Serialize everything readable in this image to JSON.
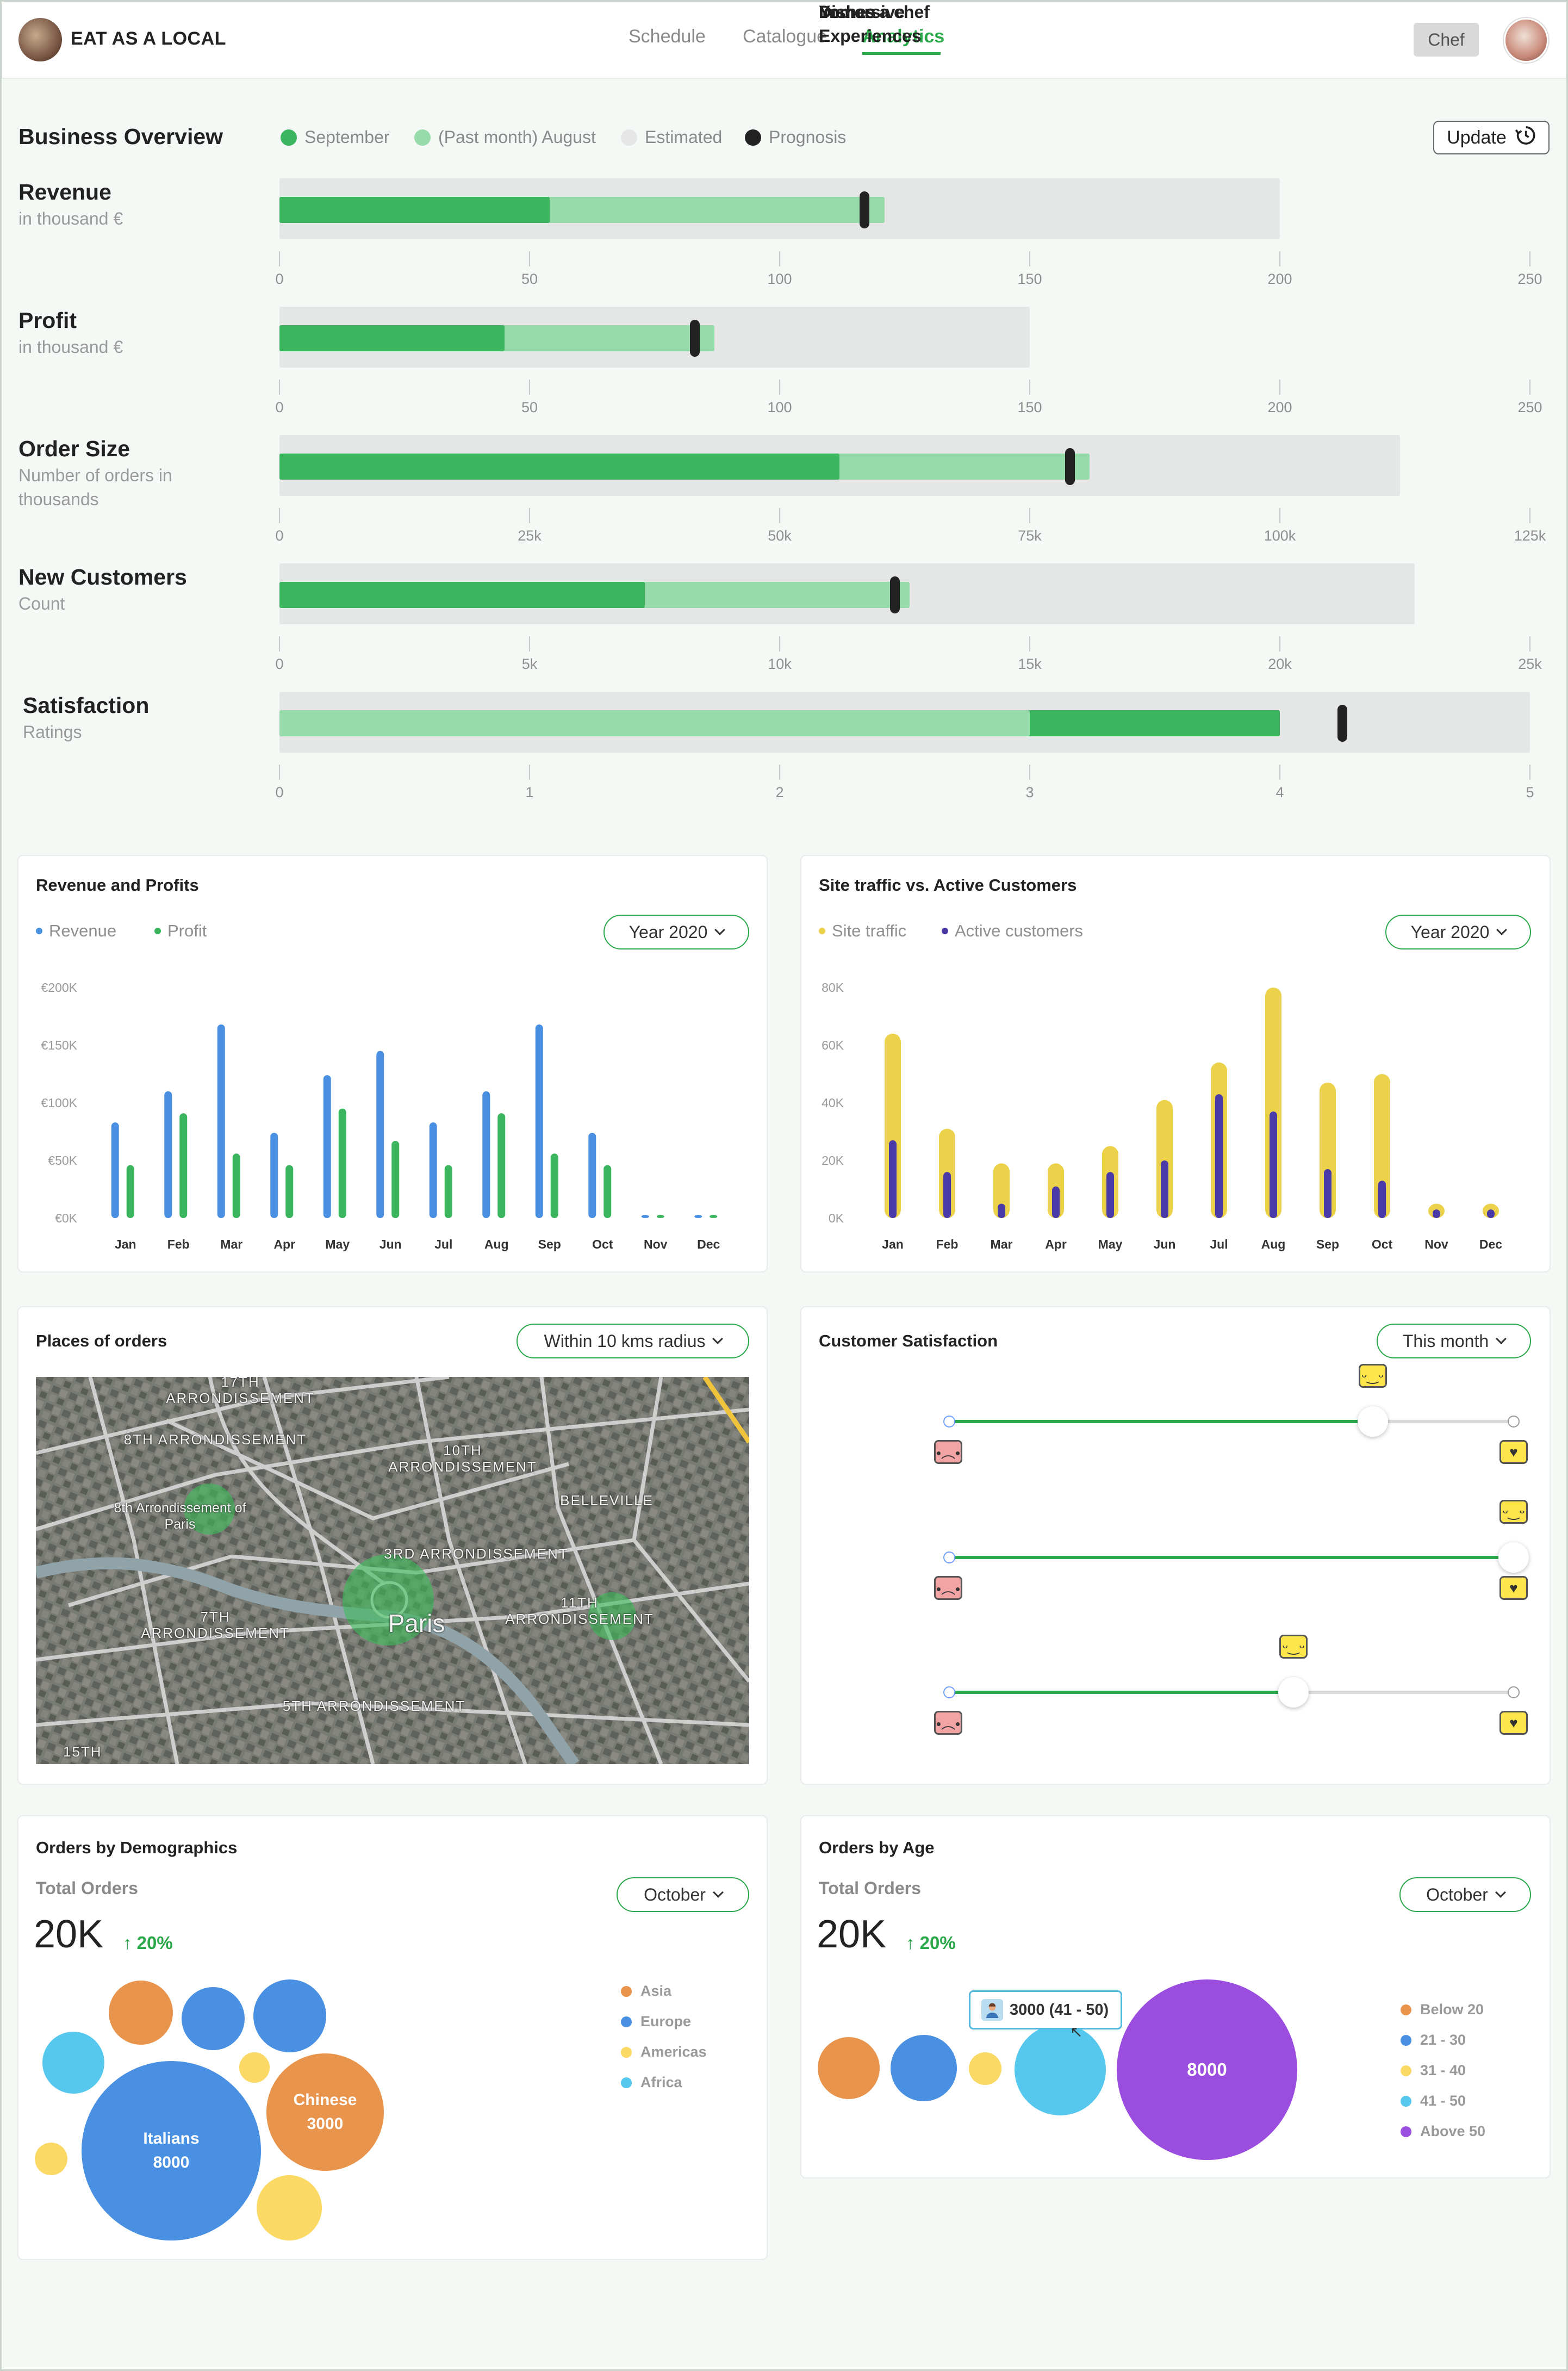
{
  "nav": {
    "brand": "EAT AS A LOCAL",
    "links": [
      "Schedule",
      "Catalogue",
      "Analytics"
    ],
    "active": "Analytics",
    "role_button": "Chef"
  },
  "overview": {
    "title": "Business Overview",
    "legend": [
      {
        "label": "September",
        "color": "#3cb55f"
      },
      {
        "label": "(Past month) August",
        "color": "#98dbab"
      },
      {
        "label": "Estimated",
        "color": "#e6e6e6"
      },
      {
        "label": "Prognosis",
        "color": "#222222"
      }
    ],
    "update_label": "Update",
    "metrics": [
      {
        "name": "Revenue",
        "sub": "in thousand €",
        "ticks": [
          "0",
          "50",
          "100",
          "150",
          "200",
          "250"
        ],
        "max": 250,
        "estimated": 200,
        "september": 54,
        "august": 121,
        "prognosis": 117
      },
      {
        "name": "Profit",
        "sub": "in thousand €",
        "ticks": [
          "0",
          "50",
          "100",
          "150",
          "200",
          "250"
        ],
        "max": 250,
        "estimated": 150,
        "september": 45,
        "august": 87,
        "prognosis": 83
      },
      {
        "name": "Order Size",
        "sub": "Number of orders in thousands",
        "ticks": [
          "0",
          "25k",
          "50k",
          "75k",
          "100k",
          "125k"
        ],
        "max": 125,
        "estimated": 112,
        "september": 56,
        "august": 81,
        "prognosis": 79
      },
      {
        "name": "New Customers",
        "sub": "Count",
        "ticks": [
          "0",
          "5k",
          "10k",
          "15k",
          "20k",
          "25k"
        ],
        "max": 25,
        "estimated": 22.7,
        "september": 7.3,
        "august": 12.6,
        "prognosis": 12.3
      },
      {
        "name": "Satisfaction",
        "sub": "Ratings",
        "ticks": [
          "0",
          "1",
          "2",
          "3",
          "4",
          "5"
        ],
        "max": 5,
        "estimated": 5,
        "september": 4.0,
        "august": 3.0,
        "prognosis": 4.25
      }
    ]
  },
  "rev_profit": {
    "title": "Revenue and Profits",
    "legend": [
      "Revenue",
      "Profit"
    ],
    "filter": "Year 2020"
  },
  "traffic": {
    "title": "Site traffic vs. Active Customers",
    "legend": [
      "Site traffic",
      "Active customers"
    ],
    "filter": "Year 2020"
  },
  "chart_data": [
    {
      "type": "bar",
      "title": "Revenue and Profits",
      "categories": [
        "Jan",
        "Feb",
        "Mar",
        "Apr",
        "May",
        "Jun",
        "Jul",
        "Aug",
        "Sep",
        "Oct",
        "Nov",
        "Dec"
      ],
      "ylim": [
        0,
        200
      ],
      "yticks": [
        "€200K",
        "€150K",
        "€100K",
        "€50K",
        "€0K"
      ],
      "series": [
        {
          "name": "Revenue",
          "color": "#4a90e2",
          "values": [
            83,
            110,
            168,
            74,
            124,
            145,
            83,
            110,
            168,
            74,
            2,
            2
          ]
        },
        {
          "name": "Profit",
          "color": "#3cb55f",
          "values": [
            46,
            91,
            56,
            46,
            95,
            67,
            46,
            91,
            56,
            46,
            2,
            2
          ]
        }
      ]
    },
    {
      "type": "bar",
      "title": "Site traffic vs. Active Customers",
      "categories": [
        "Jan",
        "Feb",
        "Mar",
        "Apr",
        "May",
        "Jun",
        "Jul",
        "Aug",
        "Sep",
        "Oct",
        "Nov",
        "Dec"
      ],
      "ylim": [
        0,
        80
      ],
      "yticks": [
        "80K",
        "60K",
        "40K",
        "20K",
        "0K"
      ],
      "series": [
        {
          "name": "Site traffic",
          "color": "#ecd24a",
          "values": [
            64,
            31,
            19,
            19,
            25,
            41,
            54,
            80,
            47,
            50,
            5,
            5
          ]
        },
        {
          "name": "Active customers",
          "color": "#4a3aa8",
          "values": [
            27,
            16,
            5,
            11,
            16,
            20,
            43,
            37,
            17,
            13,
            3,
            3
          ]
        }
      ]
    }
  ],
  "places": {
    "title": "Places of orders",
    "filter": "Within 10 kms radius",
    "map_labels": [
      {
        "t": "17TH\nARRONDISSEMENT"
      },
      {
        "t": "8TH\nARRONDISSEMENT"
      },
      {
        "t": "10TH\nARRONDISSEMENT"
      },
      {
        "t": "BELLEVILLE"
      },
      {
        "t": "3RD\nARRONDISSEMENT"
      },
      {
        "t": "11TH\nARRONDISSEMENT"
      },
      {
        "t": "7TH\nARRONDISSEMENT"
      },
      {
        "t": "5TH\nARRONDISSEMENT"
      },
      {
        "t": "15TH"
      },
      {
        "t": "8th Arrondissement\nof Paris"
      },
      {
        "t": "Paris"
      }
    ]
  },
  "satisfaction": {
    "title": "Customer Satisfaction",
    "filter": "This month",
    "items": [
      {
        "label": "Dishes",
        "value": 0.75
      },
      {
        "label": "Immersive Experiences",
        "value": 1.0
      },
      {
        "label": "You as a chef",
        "value": 0.61
      }
    ]
  },
  "demographics": {
    "title": "Orders by Demographics",
    "total_label": "Total Orders",
    "total": "20K",
    "change": "20%",
    "filter": "October",
    "legend": [
      {
        "label": "Asia",
        "color": "#e9944d"
      },
      {
        "label": "Europe",
        "color": "#4a90e2"
      },
      {
        "label": "Americas",
        "color": "#fbd964"
      },
      {
        "label": "Africa",
        "color": "#56c8ee"
      }
    ],
    "bubbles": [
      {
        "label": "Italians",
        "value": "8000"
      },
      {
        "label": "Chinese",
        "value": "3000"
      }
    ]
  },
  "age": {
    "title": "Orders by Age",
    "total_label": "Total Orders",
    "total": "20K",
    "change": "20%",
    "filter": "October",
    "tooltip": "3000 (41 - 50)",
    "big_value": "8000",
    "legend": [
      {
        "label": "Below 20",
        "color": "#e9944d"
      },
      {
        "label": "21 - 30",
        "color": "#4a90e2"
      },
      {
        "label": "31 - 40",
        "color": "#fbd964"
      },
      {
        "label": "41 - 50",
        "color": "#56c8ee"
      },
      {
        "label": "Above 50",
        "color": "#9b4de0"
      }
    ]
  }
}
